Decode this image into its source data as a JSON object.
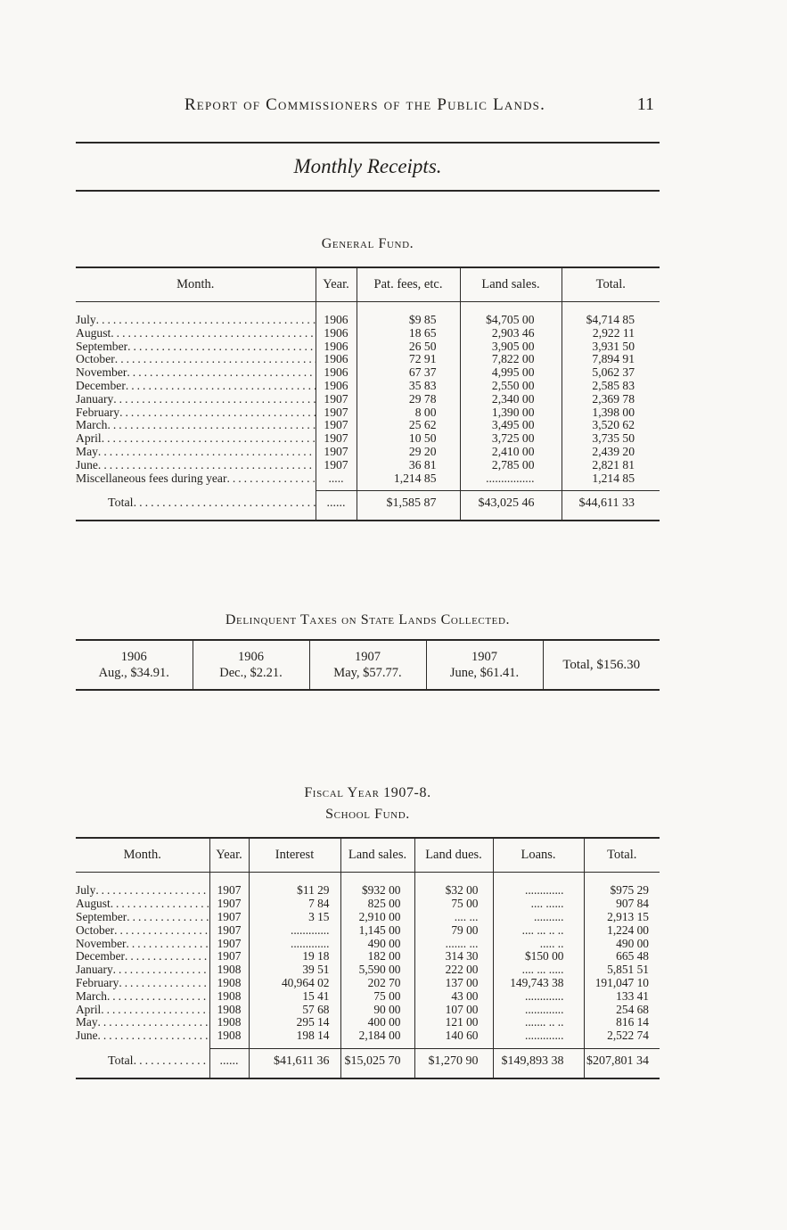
{
  "header": {
    "title": "Report of Commissioners of the Public Lands.",
    "page_number": "11",
    "section_title": "Monthly Receipts."
  },
  "general_fund": {
    "heading": "General Fund.",
    "columns": [
      "Month.",
      "Year.",
      "Pat. fees, etc.",
      "Land sales.",
      "Total."
    ],
    "rows": [
      {
        "month": "July",
        "year": "1906",
        "fees": "$9 85",
        "sales": "$4,705 00",
        "total": "$4,714 85"
      },
      {
        "month": "August",
        "year": "1906",
        "fees": "18 65",
        "sales": "2,903 46",
        "total": "2,922 11"
      },
      {
        "month": "September",
        "year": "1906",
        "fees": "26 50",
        "sales": "3,905 00",
        "total": "3,931 50"
      },
      {
        "month": "October",
        "year": "1906",
        "fees": "72 91",
        "sales": "7,822 00",
        "total": "7,894 91"
      },
      {
        "month": "November",
        "year": "1906",
        "fees": "67 37",
        "sales": "4,995 00",
        "total": "5,062 37"
      },
      {
        "month": "December",
        "year": "1906",
        "fees": "35 83",
        "sales": "2,550 00",
        "total": "2,585 83"
      },
      {
        "month": "January",
        "year": "1907",
        "fees": "29 78",
        "sales": "2,340 00",
        "total": "2,369 78"
      },
      {
        "month": "February",
        "year": "1907",
        "fees": "8 00",
        "sales": "1,390 00",
        "total": "1,398 00"
      },
      {
        "month": "March",
        "year": "1907",
        "fees": "25 62",
        "sales": "3,495 00",
        "total": "3,520 62"
      },
      {
        "month": "April",
        "year": "1907",
        "fees": "10 50",
        "sales": "3,725 00",
        "total": "3,735 50"
      },
      {
        "month": "May",
        "year": "1907",
        "fees": "29 20",
        "sales": "2,410 00",
        "total": "2,439 20"
      },
      {
        "month": "June",
        "year": "1907",
        "fees": "36 81",
        "sales": "2,785 00",
        "total": "2,821 81"
      },
      {
        "month": "Miscellaneous fees during year",
        "year": ".....",
        "fees": "1,214 85",
        "sales": "................",
        "total": "1,214 85"
      }
    ],
    "total": {
      "label": "Total",
      "year": "......",
      "fees": "$1,585 87",
      "sales": "$43,025 46",
      "total": "$44,611 33"
    }
  },
  "delinquent": {
    "heading": "Delinquent Taxes on State Lands Collected.",
    "cells": [
      {
        "line1": "1906",
        "line2": "Aug., $34.91."
      },
      {
        "line1": "1906",
        "line2": "Dec., $2.21."
      },
      {
        "line1": "1907",
        "line2": "May, $57.77."
      },
      {
        "line1": "1907",
        "line2": "June, $61.41."
      }
    ],
    "total": "Total, $156.30"
  },
  "school_fund": {
    "heading1": "Fiscal Year 1907-8.",
    "heading2": "School Fund.",
    "columns": [
      "Month.",
      "Year.",
      "Interest",
      "Land sales.",
      "Land dues.",
      "Loans.",
      "Total."
    ],
    "rows": [
      {
        "month": "July",
        "year": "1907",
        "interest": "$11 29",
        "sales": "$932 00",
        "dues": "$32 00",
        "loans": ".............",
        "total": "$975 29"
      },
      {
        "month": "August",
        "year": "1907",
        "interest": "7 84",
        "sales": "825 00",
        "dues": "75 00",
        "loans": ".... ......",
        "total": "907 84"
      },
      {
        "month": "September",
        "year": "1907",
        "interest": "3 15",
        "sales": "2,910 00",
        "dues": ".... ...",
        "loans": "..........",
        "total": "2,913 15"
      },
      {
        "month": "October",
        "year": "1907",
        "interest": ".............",
        "sales": "1,145 00",
        "dues": "79 00",
        "loans": ".... ... .. ..",
        "total": "1,224 00"
      },
      {
        "month": "November",
        "year": "1907",
        "interest": ".............",
        "sales": "490 00",
        "dues": "....... ...",
        "loans": ".....  ..",
        "total": "490 00"
      },
      {
        "month": "December",
        "year": "1907",
        "interest": "19 18",
        "sales": "182 00",
        "dues": "314 30",
        "loans": "$150 00",
        "total": "665 48"
      },
      {
        "month": "January",
        "year": "1908",
        "interest": "39 51",
        "sales": "5,590 00",
        "dues": "222 00",
        "loans": ".... ... .....",
        "total": "5,851 51"
      },
      {
        "month": "February",
        "year": "1908",
        "interest": "40,964 02",
        "sales": "202 70",
        "dues": "137 00",
        "loans": "149,743 38",
        "total": "191,047 10"
      },
      {
        "month": "March",
        "year": "1908",
        "interest": "15 41",
        "sales": "75 00",
        "dues": "43 00",
        "loans": ".............",
        "total": "133 41"
      },
      {
        "month": "April",
        "year": "1908",
        "interest": "57 68",
        "sales": "90 00",
        "dues": "107 00",
        "loans": ".............",
        "total": "254 68"
      },
      {
        "month": "May",
        "year": "1908",
        "interest": "295 14",
        "sales": "400 00",
        "dues": "121 00",
        "loans": "....... .. ..",
        "total": "816 14"
      },
      {
        "month": "June",
        "year": "1908",
        "interest": "198 14",
        "sales": "2,184 00",
        "dues": "140 60",
        "loans": ".............",
        "total": "2,522 74"
      }
    ],
    "total": {
      "label": "Total",
      "year": "......",
      "interest": "$41,611 36",
      "sales": "$15,025 70",
      "dues": "$1,270 90",
      "loans": "$149,893 38",
      "total": "$207,801 34"
    }
  }
}
